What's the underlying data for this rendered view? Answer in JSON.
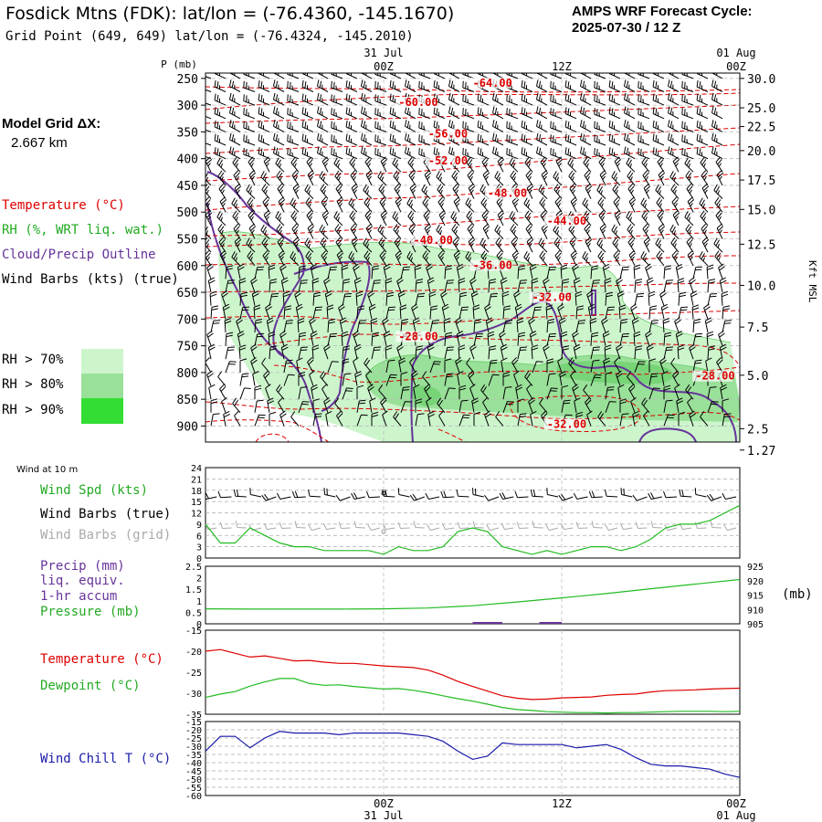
{
  "header": {
    "title": "Fosdick Mtns (FDK):  lat/lon = (-76.4360, -145.1670)",
    "subtitle": "Grid Point (649, 649) lat/lon = (-76.4324, -145.2010)",
    "cycle_line1": "AMPS WRF Forecast Cycle:",
    "cycle_line2": "2025-07-30 / 12  Z"
  },
  "grid_info": {
    "label": "Model Grid ΔX:",
    "value": "2.667 km"
  },
  "legend_main": {
    "temperature": "Temperature (°C)",
    "rh": "RH (%, WRT liq. wat.)",
    "cloud": "Cloud/Precip Outline",
    "wind": "Wind Barbs (kts) (true)",
    "rh70": "RH > 70%",
    "rh80": "RH > 80%",
    "rh90": "RH > 90%"
  },
  "time_axis": {
    "top_date_left": "31 Jul",
    "top_date_right": "01 Aug",
    "bottom_date_left": "31 Jul",
    "bottom_date_right": "01 Aug",
    "ticks": [
      "00Z",
      "12Z",
      "00Z"
    ]
  },
  "sfc": {
    "title": "Wind at 10 m",
    "wspd": "Wind Spd (kts)",
    "barbs_true": "Wind Barbs (true)",
    "barbs_grid": "Wind Barbs (grid)",
    "precip1": "Precip (mm)",
    "precip2": "liq. equiv.",
    "precip3": "1-hr accum",
    "pressure": "Pressure (mb)",
    "pressure_unit": "(mb)",
    "temperature": "Temperature (°C)",
    "dewpoint": "Dewpoint (°C)",
    "windchill": "Wind Chill T (°C)"
  },
  "colors": {
    "temperature": "#dd0000",
    "rh_line": "#22bb22",
    "rh70": "#ccf5cc",
    "rh80": "#99e099",
    "rh90": "#33dd33",
    "cloud": "#663399",
    "wind": "#000000",
    "grid_barbs": "#aaaaaa",
    "windchill": "#1a1aaa"
  },
  "chart_data": [
    {
      "type": "line",
      "name": "cross-section",
      "pressure_ticks": [
        250,
        300,
        350,
        400,
        450,
        500,
        550,
        600,
        650,
        700,
        750,
        800,
        850,
        900
      ],
      "pressure_label": "P (mb)",
      "height_ticks": [
        {
          "p": 250,
          "label": "30.0"
        },
        {
          "p": 305,
          "label": "25.0"
        },
        {
          "p": 340,
          "label": "22.5"
        },
        {
          "p": 385,
          "label": "20.0"
        },
        {
          "p": 440,
          "label": "17.5"
        },
        {
          "p": 495,
          "label": "15.0"
        },
        {
          "p": 560,
          "label": "12.5"
        },
        {
          "p": 637,
          "label": "10.0"
        },
        {
          "p": 715,
          "label": "7.5"
        },
        {
          "p": 805,
          "label": "5.0"
        },
        {
          "p": 905,
          "label": "2.5"
        },
        {
          "p": 945,
          "label": "1.27"
        }
      ],
      "height_label": "Kft MSL",
      "hour_range": [
        -12,
        24
      ],
      "temperature_contours": [
        {
          "label": "-64.00",
          "p": 262,
          "hour": 6
        },
        {
          "label": "-60.00",
          "p": 298,
          "hour": 1
        },
        {
          "label": "-56.00",
          "p": 357,
          "hour": 3
        },
        {
          "label": "-52.00",
          "p": 407,
          "hour": 3
        },
        {
          "label": "-48.00",
          "p": 468,
          "hour": 7
        },
        {
          "label": "-44.00",
          "p": 520,
          "hour": 11
        },
        {
          "label": "-40.00",
          "p": 556,
          "hour": 2
        },
        {
          "label": "-36.00",
          "p": 603,
          "hour": 6
        },
        {
          "label": "-32.00",
          "p": 663,
          "hour": 10
        },
        {
          "label": "-28.00",
          "p": 736,
          "hour": 1
        },
        {
          "label": "-28.00",
          "p": 810,
          "hour": 21
        },
        {
          "label": "-32.00",
          "p": 900,
          "hour": 11
        }
      ]
    },
    {
      "type": "line",
      "name": "surface-wind",
      "ylim": [
        0,
        24
      ],
      "yticks": [
        0,
        3,
        6,
        9,
        12,
        15,
        18,
        21,
        24
      ],
      "hours": [
        -12,
        -11,
        -10,
        -9,
        -8,
        -7,
        -6,
        -5,
        -4,
        -3,
        -2,
        -1,
        0,
        1,
        2,
        3,
        4,
        5,
        6,
        7,
        8,
        9,
        10,
        11,
        12,
        13,
        14,
        15,
        16,
        17,
        18,
        19,
        20,
        21,
        22,
        23,
        24
      ],
      "wind_speed": [
        9,
        4,
        4,
        8,
        6,
        4,
        3,
        3,
        2,
        2,
        2,
        2,
        1,
        3,
        2,
        2,
        3,
        7,
        8,
        7,
        3,
        2,
        1,
        2,
        1,
        2,
        3,
        3,
        2,
        3,
        5,
        8,
        9,
        9,
        10,
        12,
        14
      ]
    },
    {
      "type": "line",
      "name": "precip-pressure",
      "precip_ylim": [
        0,
        2.5
      ],
      "precip_yticks": [
        0,
        0.5,
        1,
        1.5,
        2,
        2.5
      ],
      "pressure_ylim": [
        905,
        925
      ],
      "pressure_yticks": [
        905,
        910,
        915,
        920,
        925
      ],
      "hours": [
        -12,
        -9,
        -6,
        -3,
        0,
        3,
        6,
        9,
        12,
        15,
        18,
        21,
        24
      ],
      "pressure": [
        910.2,
        910.1,
        910.1,
        910.1,
        910.2,
        910.5,
        911.3,
        912.6,
        914,
        915.5,
        917.2,
        918.8,
        920.4
      ],
      "precip": [
        0,
        0,
        0,
        0,
        0,
        0,
        0,
        0,
        0,
        0,
        0,
        0,
        0
      ]
    },
    {
      "type": "line",
      "name": "temperature-dewpoint",
      "ylim": [
        -35,
        -15
      ],
      "yticks": [
        -35,
        -30,
        -25,
        -20,
        -15
      ],
      "hours": [
        -12,
        -11,
        -10,
        -9,
        -8,
        -7,
        -6,
        -5,
        -4,
        -3,
        -2,
        -1,
        0,
        1,
        2,
        3,
        4,
        5,
        6,
        7,
        8,
        9,
        10,
        11,
        12,
        13,
        14,
        15,
        16,
        17,
        18,
        19,
        20,
        21,
        22,
        23,
        24
      ],
      "temperature": [
        -20,
        -19.6,
        -20.5,
        -21.4,
        -21.1,
        -21.7,
        -22.3,
        -22.2,
        -22.6,
        -22.9,
        -22.9,
        -23.2,
        -23.5,
        -23.7,
        -23.9,
        -24.5,
        -25.7,
        -27.2,
        -28.4,
        -29.5,
        -30.6,
        -31.2,
        -31.5,
        -31.4,
        -31.1,
        -31,
        -30.9,
        -30.5,
        -30.3,
        -30.2,
        -29.7,
        -29.4,
        -29.3,
        -29.2,
        -29,
        -28.9,
        -28.8
      ],
      "dewpoint": [
        -31,
        -30.2,
        -29.6,
        -28.3,
        -27.3,
        -26.5,
        -26.5,
        -27.7,
        -28.1,
        -28,
        -28.4,
        -28.7,
        -29,
        -28.9,
        -29.3,
        -29.9,
        -30.6,
        -31.3,
        -31.9,
        -32.6,
        -33.4,
        -33.9,
        -34.1,
        -34.4,
        -34.5,
        -34.6,
        -34.6,
        -34.7,
        -34.6,
        -34.6,
        -34.5,
        -34.4,
        -34.3,
        -34.3,
        -34.3,
        -34.4,
        -34.3
      ]
    },
    {
      "type": "line",
      "name": "wind-chill",
      "ylim": [
        -60,
        -15
      ],
      "yticks": [
        -60,
        -55,
        -50,
        -45,
        -40,
        -35,
        -30,
        -25,
        -20,
        -15
      ],
      "hours": [
        -12,
        -11,
        -10,
        -9,
        -8,
        -7,
        -6,
        -5,
        -4,
        -3,
        -2,
        -1,
        0,
        1,
        2,
        3,
        4,
        5,
        6,
        7,
        8,
        9,
        10,
        11,
        12,
        13,
        14,
        15,
        16,
        17,
        18,
        19,
        20,
        21,
        22,
        23,
        24
      ],
      "wind_chill": [
        -33,
        -24,
        -24,
        -31,
        -25,
        -21,
        -22,
        -22,
        -22,
        -23,
        -22,
        -22,
        -22,
        -22,
        -23,
        -24,
        -27,
        -33,
        -38,
        -36,
        -28,
        -29,
        -29,
        -29,
        -29,
        -31,
        -30,
        -29,
        -32,
        -37,
        -41,
        -42,
        -42,
        -43,
        -44,
        -47,
        -49
      ]
    }
  ]
}
